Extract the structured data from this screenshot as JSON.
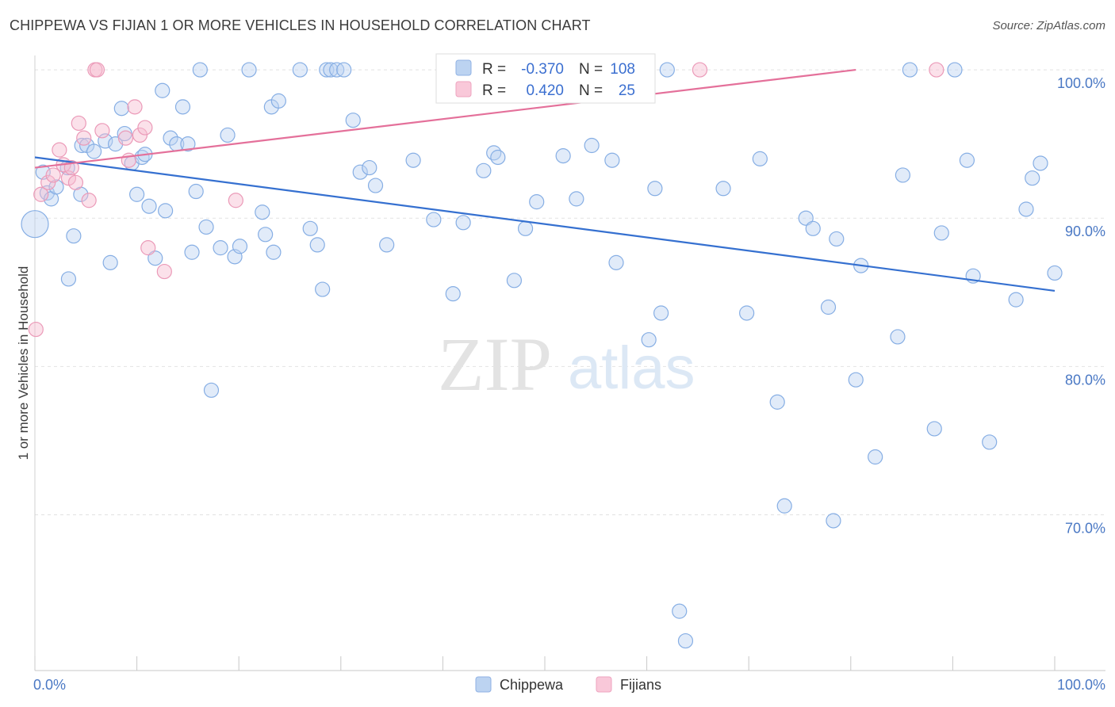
{
  "header": {
    "title": "CHIPPEWA VS FIJIAN 1 OR MORE VEHICLES IN HOUSEHOLD CORRELATION CHART",
    "source": "Source: ZipAtlas.com"
  },
  "watermark": {
    "zip": "ZIP",
    "atlas": "atlas"
  },
  "legend": {
    "rows": [
      {
        "r_label": "R =",
        "r_value": "-0.370",
        "n_label": "N =",
        "n_value": "108"
      },
      {
        "r_label": "R =",
        "r_value": "0.420",
        "n_label": "N =",
        "n_value": "25"
      }
    ]
  },
  "chart_data": {
    "type": "scatter",
    "title": "CHIPPEWA VS FIJIAN 1 OR MORE VEHICLES IN HOUSEHOLD CORRELATION CHART",
    "xlabel": "",
    "ylabel": "1 or more Vehicles in Household",
    "xlim": [
      0,
      100
    ],
    "ylim": [
      59.5,
      101.5
    ],
    "x_tick_labels": [
      "0.0%",
      "100.0%"
    ],
    "y_ticks": [
      70,
      80,
      90,
      100
    ],
    "y_tick_labels": [
      "70.0%",
      "80.0%",
      "90.0%",
      "100.0%"
    ],
    "grid": true,
    "legend_position": "top-center",
    "colors": {
      "Chippewa": "#9dbde8",
      "Fijians": "#f2a9c4",
      "chippewa_line": "#3570d0",
      "fijians_line": "#e4709a"
    },
    "series": [
      {
        "name": "Chippewa",
        "points": [
          [
            0.0,
            89.6
          ],
          [
            0.8,
            93.1
          ],
          [
            1.2,
            91.7
          ],
          [
            1.6,
            91.3
          ],
          [
            2.1,
            92.1
          ],
          [
            3.2,
            93.4
          ],
          [
            3.3,
            85.9
          ],
          [
            3.8,
            88.8
          ],
          [
            4.5,
            91.6
          ],
          [
            4.6,
            94.9
          ],
          [
            5.1,
            94.9
          ],
          [
            5.8,
            94.5
          ],
          [
            6.9,
            95.2
          ],
          [
            7.4,
            87.0
          ],
          [
            7.9,
            95.0
          ],
          [
            8.5,
            97.4
          ],
          [
            8.8,
            95.7
          ],
          [
            9.5,
            93.7
          ],
          [
            10.0,
            91.6
          ],
          [
            10.5,
            94.1
          ],
          [
            10.8,
            94.3
          ],
          [
            11.2,
            90.8
          ],
          [
            11.8,
            87.3
          ],
          [
            12.5,
            98.6
          ],
          [
            12.8,
            90.5
          ],
          [
            13.3,
            95.4
          ],
          [
            13.9,
            95.0
          ],
          [
            14.5,
            97.5
          ],
          [
            15.0,
            95.0
          ],
          [
            15.4,
            87.7
          ],
          [
            15.8,
            91.8
          ],
          [
            16.2,
            100.0
          ],
          [
            16.8,
            89.4
          ],
          [
            17.3,
            78.4
          ],
          [
            18.2,
            88.0
          ],
          [
            18.9,
            95.6
          ],
          [
            19.6,
            87.4
          ],
          [
            20.1,
            88.1
          ],
          [
            21.0,
            100.0
          ],
          [
            22.3,
            90.4
          ],
          [
            22.6,
            88.9
          ],
          [
            23.2,
            97.5
          ],
          [
            23.4,
            87.7
          ],
          [
            23.9,
            97.9
          ],
          [
            26.0,
            100.0
          ],
          [
            27.0,
            89.3
          ],
          [
            27.7,
            88.2
          ],
          [
            28.2,
            85.2
          ],
          [
            28.6,
            100.0
          ],
          [
            29.0,
            100.0
          ],
          [
            29.6,
            100.0
          ],
          [
            30.3,
            100.0
          ],
          [
            31.2,
            96.6
          ],
          [
            31.9,
            93.1
          ],
          [
            32.8,
            93.4
          ],
          [
            33.4,
            92.2
          ],
          [
            34.5,
            88.2
          ],
          [
            37.1,
            93.9
          ],
          [
            39.1,
            89.9
          ],
          [
            41.0,
            84.9
          ],
          [
            42.0,
            89.7
          ],
          [
            44.0,
            93.2
          ],
          [
            45.0,
            94.4
          ],
          [
            45.4,
            94.1
          ],
          [
            45.8,
            100.0
          ],
          [
            47.0,
            85.8
          ],
          [
            48.1,
            89.3
          ],
          [
            49.2,
            91.1
          ],
          [
            51.0,
            100.0
          ],
          [
            51.8,
            94.2
          ],
          [
            53.1,
            91.3
          ],
          [
            53.2,
            100.0
          ],
          [
            54.6,
            94.9
          ],
          [
            56.6,
            93.9
          ],
          [
            57.0,
            87.0
          ],
          [
            60.2,
            81.8
          ],
          [
            60.8,
            92.0
          ],
          [
            61.4,
            83.6
          ],
          [
            62.0,
            100.0
          ],
          [
            63.8,
            61.5
          ],
          [
            63.2,
            63.5
          ],
          [
            67.5,
            92.0
          ],
          [
            69.8,
            83.6
          ],
          [
            71.1,
            94.0
          ],
          [
            72.8,
            77.6
          ],
          [
            73.5,
            70.6
          ],
          [
            75.6,
            90.0
          ],
          [
            76.3,
            89.3
          ],
          [
            77.8,
            84.0
          ],
          [
            78.3,
            69.6
          ],
          [
            78.6,
            88.6
          ],
          [
            80.5,
            79.1
          ],
          [
            81.0,
            86.8
          ],
          [
            82.4,
            73.9
          ],
          [
            84.6,
            82.0
          ],
          [
            85.1,
            92.9
          ],
          [
            85.8,
            100.0
          ],
          [
            88.2,
            75.8
          ],
          [
            88.9,
            89.0
          ],
          [
            90.2,
            100.0
          ],
          [
            91.4,
            93.9
          ],
          [
            92.0,
            86.1
          ],
          [
            93.6,
            74.9
          ],
          [
            96.2,
            84.5
          ],
          [
            97.2,
            90.6
          ],
          [
            97.8,
            92.7
          ],
          [
            98.6,
            93.7
          ],
          [
            100.0,
            86.3
          ]
        ]
      },
      {
        "name": "Fijians",
        "points": [
          [
            0.1,
            82.5
          ],
          [
            0.6,
            91.6
          ],
          [
            1.3,
            92.4
          ],
          [
            1.8,
            92.9
          ],
          [
            2.4,
            94.6
          ],
          [
            2.8,
            93.6
          ],
          [
            3.3,
            92.7
          ],
          [
            3.6,
            93.4
          ],
          [
            4.0,
            92.4
          ],
          [
            4.3,
            96.4
          ],
          [
            4.8,
            95.4
          ],
          [
            5.3,
            91.2
          ],
          [
            5.9,
            100.0
          ],
          [
            6.1,
            100.0
          ],
          [
            6.6,
            95.9
          ],
          [
            8.9,
            95.4
          ],
          [
            9.2,
            93.9
          ],
          [
            9.8,
            97.5
          ],
          [
            10.3,
            95.6
          ],
          [
            10.8,
            96.1
          ],
          [
            11.1,
            88.0
          ],
          [
            12.7,
            86.4
          ],
          [
            19.7,
            91.2
          ],
          [
            65.2,
            100.0
          ],
          [
            88.4,
            100.0
          ]
        ]
      }
    ],
    "trend_lines": [
      {
        "series": "Chippewa",
        "x": [
          0,
          100
        ],
        "y": [
          94.1,
          85.1
        ]
      },
      {
        "series": "Fijians",
        "x": [
          0,
          80.5
        ],
        "y": [
          93.4,
          100.0
        ]
      }
    ]
  }
}
